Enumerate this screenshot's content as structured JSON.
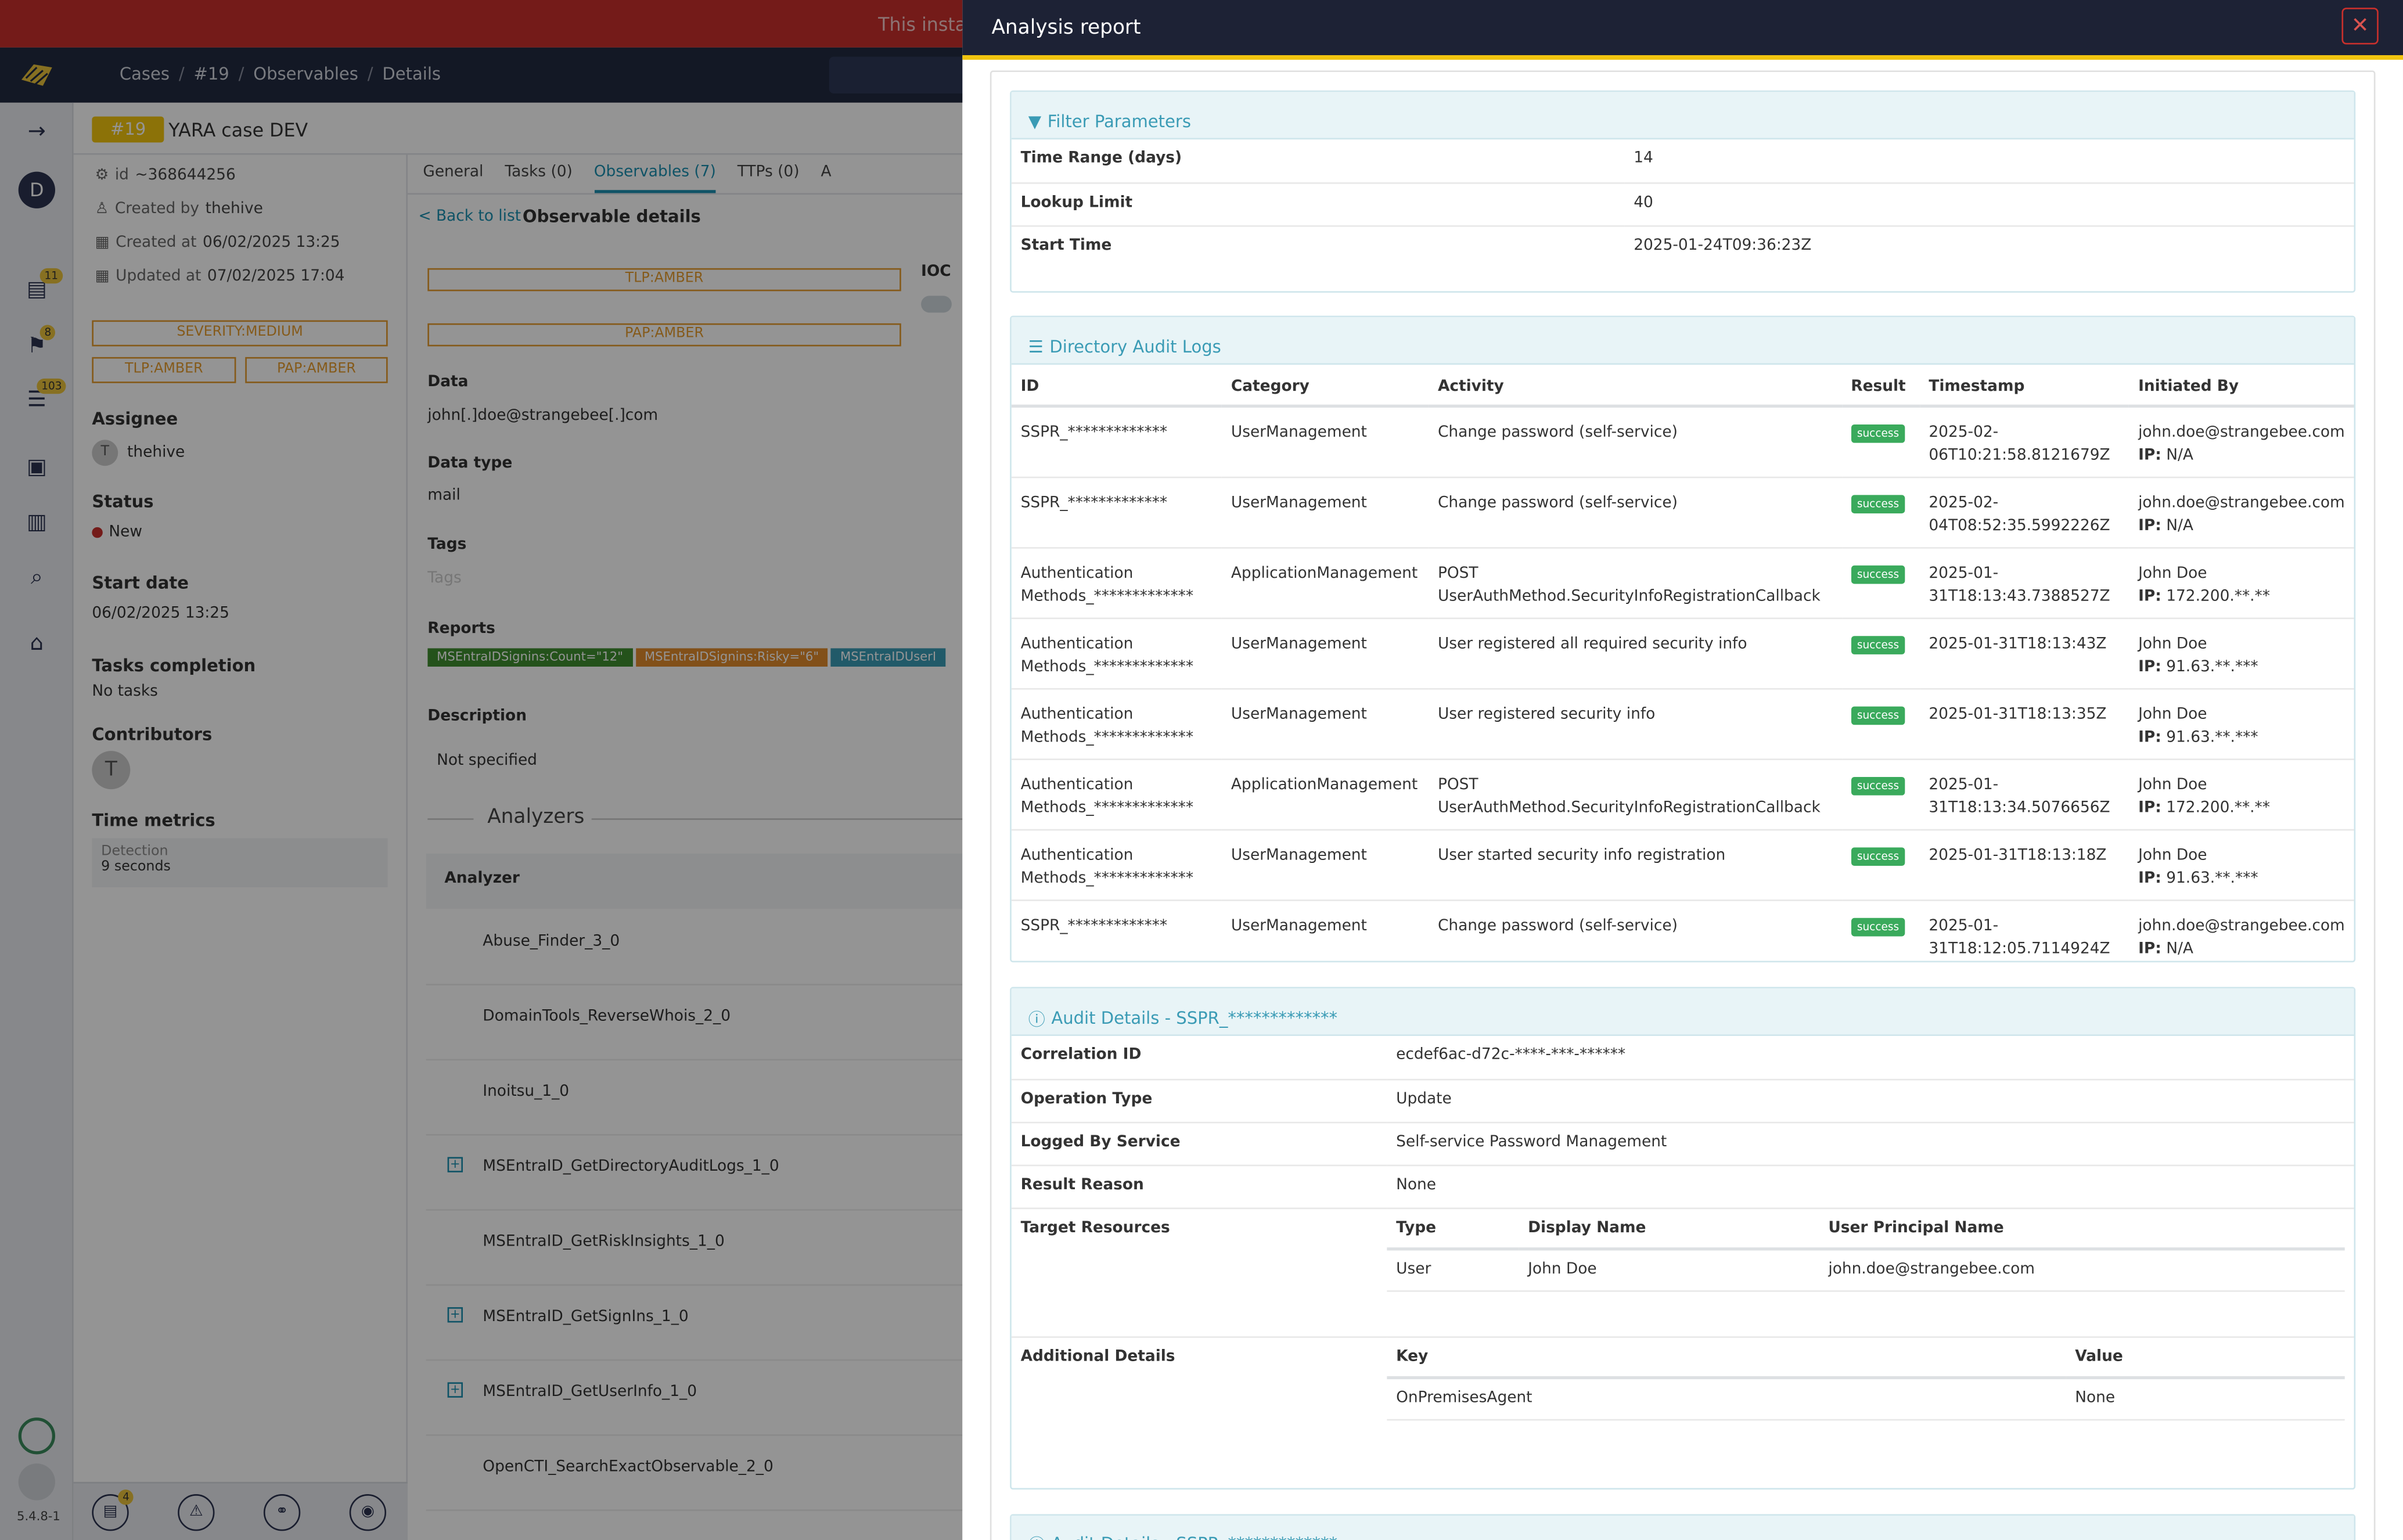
{
  "banner": {
    "text": "This instanc"
  },
  "breadcrumb": [
    "Cases",
    "#19",
    "Observables",
    "Details"
  ],
  "sidebar": {
    "badges": {
      "cases": "11",
      "tasks": "8",
      "alerts": "103"
    },
    "user_initial": "D",
    "version": "5.4.8-1"
  },
  "case": {
    "number": "#19",
    "title": "YARA case DEV",
    "id_label": "id",
    "id": "~368644256",
    "created_by_label": "Created by",
    "created_by": "thehive",
    "created_at_label": "Created at",
    "created_at": "06/02/2025 13:25",
    "updated_at_label": "Updated at",
    "updated_at": "07/02/2025 17:04",
    "severity": "SEVERITY:MEDIUM",
    "tlp": "TLP:AMBER",
    "pap": "PAP:AMBER",
    "assignee_label": "Assignee",
    "assignee": "thehive",
    "assignee_initial": "T",
    "status_label": "Status",
    "status": "New",
    "start_date_label": "Start date",
    "start_date": "06/02/2025 13:25",
    "tasks_label": "Tasks completion",
    "tasks": "No tasks",
    "contributors_label": "Contributors",
    "contributor_initial": "T",
    "time_metrics_label": "Time metrics",
    "detection_label": "Detection",
    "detection": "9 seconds",
    "footer_badge": "4"
  },
  "tabs": [
    "General",
    "Tasks (0)",
    "Observables (7)",
    "TTPs (0)",
    "A"
  ],
  "observable": {
    "back": "< Back to list",
    "title": "Observable details",
    "tlp": "TLP:AMBER",
    "pap": "PAP:AMBER",
    "ioc_label": "IOC",
    "data_label": "Data",
    "data": "john[.]doe@strangebee[.]com",
    "type_label": "Data type",
    "type": "mail",
    "tags_label": "Tags",
    "tags_placeholder": "Tags",
    "reports_label": "Reports",
    "reports": [
      {
        "text": "MSEntraIDSignins:Count=\"12\"",
        "color": "#3f8e2f"
      },
      {
        "text": "MSEntraIDSignins:Risky=\"6\"",
        "color": "#e08a2c"
      },
      {
        "text": "MSEntraIDUserI",
        "color": "#3a9bb5"
      }
    ],
    "desc_label": "Description",
    "desc": "Not specified",
    "analyzers_title": "Analyzers",
    "analyzer_col": "Analyzer",
    "analyzers": [
      {
        "name": "Abuse_Finder_3_0",
        "expandable": false
      },
      {
        "name": "DomainTools_ReverseWhois_2_0",
        "expandable": false
      },
      {
        "name": "Inoitsu_1_0",
        "expandable": false
      },
      {
        "name": "MSEntraID_GetDirectoryAuditLogs_1_0",
        "expandable": true
      },
      {
        "name": "MSEntraID_GetRiskInsights_1_0",
        "expandable": false
      },
      {
        "name": "MSEntraID_GetSignIns_1_0",
        "expandable": true
      },
      {
        "name": "MSEntraID_GetUserInfo_1_0",
        "expandable": true
      },
      {
        "name": "OpenCTI_SearchExactObservable_2_0",
        "expandable": false
      }
    ]
  },
  "report": {
    "title": "Analysis report",
    "filter": {
      "title": "Filter Parameters",
      "rows": [
        {
          "k": "Time Range (days)",
          "v": "14"
        },
        {
          "k": "Lookup Limit",
          "v": "40"
        },
        {
          "k": "Start Time",
          "v": "2025-01-24T09:36:23Z"
        }
      ]
    },
    "audit": {
      "title": "Directory Audit Logs",
      "columns": [
        "ID",
        "Category",
        "Activity",
        "Result",
        "Timestamp",
        "Initiated By"
      ],
      "rows": [
        {
          "id": "SSPR_*************",
          "category": "UserManagement",
          "activity": "Change password (self-service)",
          "result": "success",
          "ts": "2025-02-06T10:21:58.8121679Z",
          "by": "john.doe@strangebee.com",
          "ip": "N/A"
        },
        {
          "id": "SSPR_*************",
          "category": "UserManagement",
          "activity": "Change password (self-service)",
          "result": "success",
          "ts": "2025-02-04T08:52:35.5992226Z",
          "by": "john.doe@strangebee.com",
          "ip": "N/A"
        },
        {
          "id": "Authentication Methods_*************",
          "category": "ApplicationManagement",
          "activity": "POST UserAuthMethod.SecurityInfoRegistrationCallback",
          "result": "success",
          "ts": "2025-01-31T18:13:43.7388527Z",
          "by": "John Doe",
          "ip": "172.200.**.**"
        },
        {
          "id": "Authentication Methods_*************",
          "category": "UserManagement",
          "activity": "User registered all required security info",
          "result": "success",
          "ts": "2025-01-31T18:13:43Z",
          "by": "John Doe",
          "ip": "91.63.**.***"
        },
        {
          "id": "Authentication Methods_*************",
          "category": "UserManagement",
          "activity": "User registered security info",
          "result": "success",
          "ts": "2025-01-31T18:13:35Z",
          "by": "John Doe",
          "ip": "91.63.**.***"
        },
        {
          "id": "Authentication Methods_*************",
          "category": "ApplicationManagement",
          "activity": "POST UserAuthMethod.SecurityInfoRegistrationCallback",
          "result": "success",
          "ts": "2025-01-31T18:13:34.5076656Z",
          "by": "John Doe",
          "ip": "172.200.**.**"
        },
        {
          "id": "Authentication Methods_*************",
          "category": "UserManagement",
          "activity": "User started security info registration",
          "result": "success",
          "ts": "2025-01-31T18:13:18Z",
          "by": "John Doe",
          "ip": "91.63.**.***"
        },
        {
          "id": "SSPR_*************",
          "category": "UserManagement",
          "activity": "Change password (self-service)",
          "result": "success",
          "ts": "2025-01-31T18:12:05.7114924Z",
          "by": "john.doe@strangebee.com",
          "ip": "N/A"
        }
      ]
    },
    "details": {
      "title": "Audit Details - SSPR_*************",
      "correlation_label": "Correlation ID",
      "correlation": "ecdef6ac-d72c-****-***-******",
      "op_label": "Operation Type",
      "op": "Update",
      "svc_label": "Logged By Service",
      "svc": "Self-service Password Management",
      "reason_label": "Result Reason",
      "reason": "None",
      "target_label": "Target Resources",
      "target_cols": [
        "Type",
        "Display Name",
        "User Principal Name"
      ],
      "target_row": [
        "User",
        "John Doe",
        "john.doe@strangebee.com"
      ],
      "additional_label": "Additional Details",
      "add_cols": [
        "Key",
        "Value"
      ],
      "add_row": [
        "OnPremisesAgent",
        "None"
      ]
    },
    "details2_title": "Audit Details - SSPR_*************"
  }
}
